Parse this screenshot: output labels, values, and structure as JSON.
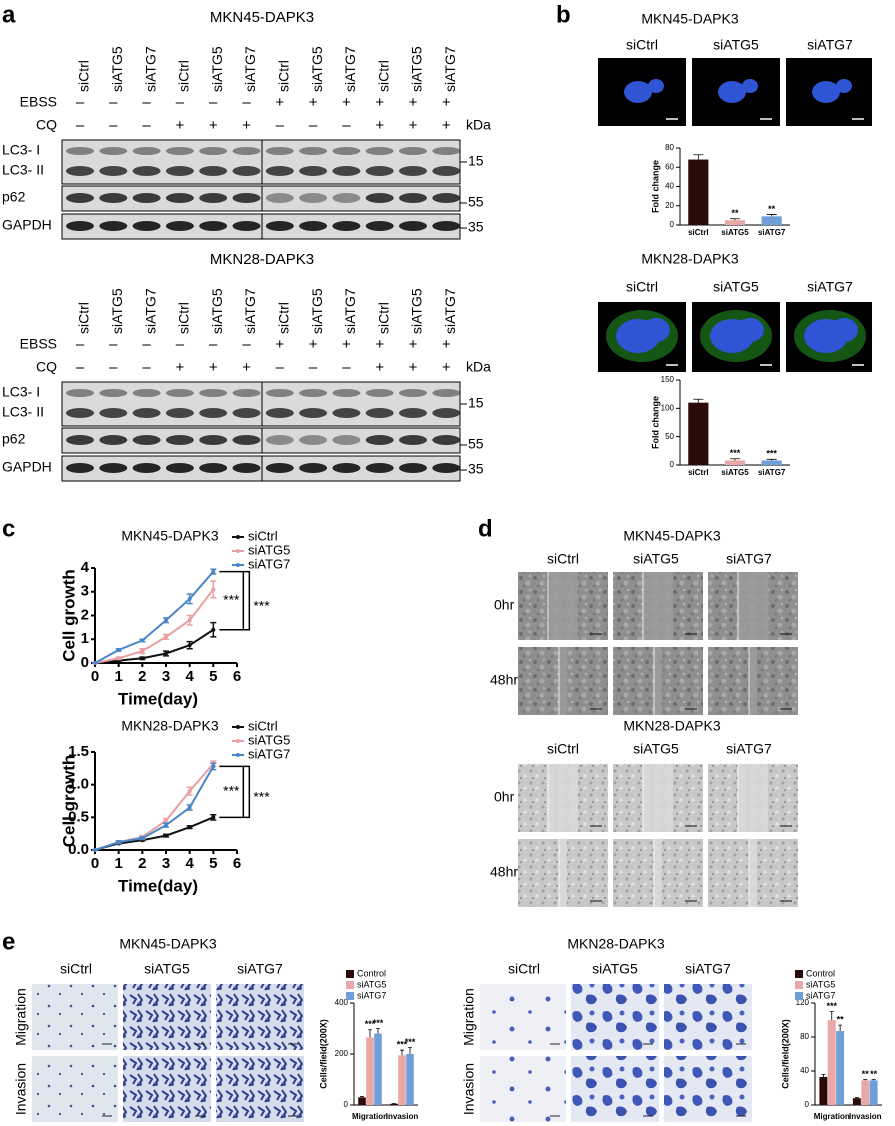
{
  "figure": {
    "a": {
      "label": "a",
      "blots": [
        {
          "title": "MKN45-DAPK3",
          "lanes": [
            "siCtrl",
            "siATG5",
            "siATG7",
            "siCtrl",
            "siATG5",
            "siATG7",
            "siCtrl",
            "siATG5",
            "siATG7",
            "siCtrl",
            "siATG5",
            "siATG7"
          ],
          "treatments": [
            {
              "name": "EBSS",
              "signs": [
                "–",
                "–",
                "–",
                "–",
                "–",
                "–",
                "+",
                "+",
                "+",
                "+",
                "+",
                "+"
              ]
            },
            {
              "name": "CQ",
              "signs": [
                "–",
                "–",
                "–",
                "+",
                "+",
                "+",
                "–",
                "–",
                "–",
                "+",
                "+",
                "+"
              ]
            }
          ],
          "unit": "kDa",
          "rows": [
            "LC3- I",
            "LC3- II",
            "p62",
            "GAPDH"
          ],
          "markers": [
            15,
            55,
            35
          ]
        },
        {
          "title": "MKN28-DAPK3",
          "lanes": [
            "siCtrl",
            "siATG5",
            "siATG7",
            "siCtrl",
            "siATG5",
            "siATG7",
            "siCtrl",
            "siATG5",
            "siATG7",
            "siCtrl",
            "siATG5",
            "siATG7"
          ],
          "treatments": [
            {
              "name": "EBSS",
              "signs": [
                "–",
                "–",
                "–",
                "–",
                "–",
                "–",
                "+",
                "+",
                "+",
                "+",
                "+",
                "+"
              ]
            },
            {
              "name": "CQ",
              "signs": [
                "–",
                "–",
                "–",
                "+",
                "+",
                "+",
                "–",
                "–",
                "–",
                "+",
                "+",
                "+"
              ]
            }
          ],
          "unit": "kDa",
          "rows": [
            "LC3- I",
            "LC3- II",
            "p62",
            "GAPDH"
          ],
          "markers": [
            15,
            55,
            35
          ]
        }
      ]
    },
    "b": {
      "label": "b",
      "groups": [
        {
          "title": "MKN45-DAPK3",
          "images": [
            "siCtrl",
            "siATG5",
            "siATG7"
          ]
        },
        {
          "title": "MKN28-DAPK3",
          "images": [
            "siCtrl",
            "siATG5",
            "siATG7"
          ]
        }
      ]
    },
    "c": {
      "label": "c"
    },
    "d": {
      "label": "d",
      "groups": [
        {
          "title": "MKN45-DAPK3",
          "columns": [
            "siCtrl",
            "siATG5",
            "siATG7"
          ],
          "rows": [
            "0hr",
            "48hr"
          ]
        },
        {
          "title": "MKN28-DAPK3",
          "columns": [
            "siCtrl",
            "siATG5",
            "siATG7"
          ],
          "rows": [
            "0hr",
            "48hr"
          ]
        }
      ]
    },
    "e": {
      "label": "e",
      "groups": [
        {
          "title": "MKN45-DAPK3",
          "columns": [
            "siCtrl",
            "siATG5",
            "siATG7"
          ],
          "rows": [
            "Migration",
            "Invasion"
          ]
        },
        {
          "title": "MKN28-DAPK3",
          "columns": [
            "siCtrl",
            "siATG5",
            "siATG7"
          ],
          "rows": [
            "Migration",
            "Invasion"
          ]
        }
      ]
    }
  },
  "chart_data": [
    {
      "type": "bar",
      "y_label": "Fold change",
      "categories": [
        "siCtrl",
        "siATG5",
        "siATG7"
      ],
      "values": [
        68,
        5,
        9
      ],
      "errors": [
        5,
        1.5,
        2
      ],
      "significance": [
        null,
        "**",
        "**"
      ],
      "colors": [
        "#2b0a0a",
        "#e8a8a8",
        "#6f9fd8"
      ],
      "ylim": [
        0,
        80
      ],
      "yticks": [
        0,
        20,
        40,
        60,
        80
      ]
    },
    {
      "type": "bar",
      "y_label": "Fold change",
      "categories": [
        "siCtrl",
        "siATG5",
        "siATG7"
      ],
      "values": [
        110,
        8,
        8
      ],
      "errors": [
        6,
        3,
        2
      ],
      "significance": [
        null,
        "***",
        "***"
      ],
      "colors": [
        "#2b0a0a",
        "#e8a8a8",
        "#6f9fd8"
      ],
      "ylim": [
        0,
        150
      ],
      "yticks": [
        0,
        50,
        100,
        150
      ]
    },
    {
      "type": "line",
      "title": "MKN45-DAPK3",
      "x_label": "Time(day)",
      "y_label": "Cell growth",
      "x": [
        0,
        1,
        2,
        3,
        4,
        5
      ],
      "xlim": [
        0,
        6
      ],
      "xticks": [
        0,
        1,
        2,
        3,
        4,
        5,
        6
      ],
      "ylim": [
        0,
        4
      ],
      "yticks": [
        0,
        1,
        2,
        3,
        4
      ],
      "legend": "upper right",
      "series": [
        {
          "name": "siCtrl",
          "color": "#111111",
          "values": [
            0,
            0.1,
            0.2,
            0.4,
            0.75,
            1.4
          ],
          "errors": [
            0,
            0.05,
            0.05,
            0.1,
            0.15,
            0.3
          ]
        },
        {
          "name": "siATG5",
          "color": "#e8a0a0",
          "values": [
            0,
            0.2,
            0.5,
            1.1,
            1.8,
            3.1
          ],
          "errors": [
            0,
            0.05,
            0.1,
            0.1,
            0.2,
            0.35
          ]
        },
        {
          "name": "siATG7",
          "color": "#4a86c8",
          "values": [
            0,
            0.55,
            0.95,
            1.8,
            2.7,
            3.85
          ],
          "errors": [
            0,
            0.05,
            0.05,
            0.1,
            0.2,
            0.1
          ]
        }
      ],
      "annotations": [
        "***",
        "***"
      ]
    },
    {
      "type": "line",
      "title": "MKN28-DAPK3",
      "x_label": "Time(day)",
      "y_label": "Cell growth",
      "x": [
        0,
        1,
        2,
        3,
        4,
        5
      ],
      "xlim": [
        0,
        6
      ],
      "xticks": [
        0,
        1,
        2,
        3,
        4,
        5,
        6
      ],
      "ylim": [
        0,
        1.5
      ],
      "yticks": [
        {
          "value": 0,
          "label": "0.0"
        },
        0.5,
        {
          "value": 1,
          "label": "1.0"
        },
        1.5
      ],
      "legend": "upper right",
      "series": [
        {
          "name": "siCtrl",
          "color": "#111111",
          "values": [
            0,
            0.1,
            0.15,
            0.22,
            0.35,
            0.5
          ],
          "errors": [
            0,
            0.01,
            0.01,
            0.02,
            0.02,
            0.04
          ]
        },
        {
          "name": "siATG5",
          "color": "#e8a0a0",
          "values": [
            0,
            0.12,
            0.2,
            0.45,
            0.9,
            1.32
          ],
          "errors": [
            0,
            0.02,
            0.02,
            0.03,
            0.06,
            0.04
          ]
        },
        {
          "name": "siATG7",
          "color": "#4a86c8",
          "values": [
            0,
            0.12,
            0.18,
            0.38,
            0.65,
            1.28
          ],
          "errors": [
            0,
            0.02,
            0.02,
            0.03,
            0.04,
            0.05
          ]
        }
      ],
      "annotations": [
        "***",
        "***"
      ]
    },
    {
      "type": "bar",
      "y_label": "Cells/field(200X)",
      "categories": [
        "Migration",
        "Invasion"
      ],
      "ylim": [
        0,
        400
      ],
      "yticks": [
        0,
        200,
        400
      ],
      "legend": "upper left",
      "series": [
        {
          "name": "Control",
          "color": "#2b0a0a",
          "values": [
            30,
            5
          ],
          "errors": [
            3,
            1
          ],
          "significance": [
            null,
            null
          ]
        },
        {
          "name": "siATG5",
          "color": "#e8a8a8",
          "values": [
            265,
            195
          ],
          "errors": [
            30,
            20
          ],
          "significance": [
            "***",
            "***"
          ]
        },
        {
          "name": "siATG7",
          "color": "#6f9fd8",
          "values": [
            280,
            200
          ],
          "errors": [
            20,
            25
          ],
          "significance": [
            "***",
            "***"
          ]
        }
      ]
    },
    {
      "type": "bar",
      "y_label": "Cells/field(200X)",
      "categories": [
        "Migration",
        "Invasion"
      ],
      "ylim": [
        0,
        120
      ],
      "yticks": [
        0,
        40,
        80,
        120
      ],
      "legend": "upper left",
      "series": [
        {
          "name": "Control",
          "color": "#2b0a0a",
          "values": [
            33,
            8
          ],
          "errors": [
            3,
            1
          ],
          "significance": [
            null,
            null
          ]
        },
        {
          "name": "siATG5",
          "color": "#e8a8a8",
          "values": [
            100,
            29
          ],
          "errors": [
            10,
            1
          ],
          "significance": [
            "***",
            "**"
          ]
        },
        {
          "name": "siATG7",
          "color": "#6f9fd8",
          "values": [
            87,
            29
          ],
          "errors": [
            7,
            1
          ],
          "significance": [
            "**",
            "**"
          ]
        }
      ]
    }
  ]
}
